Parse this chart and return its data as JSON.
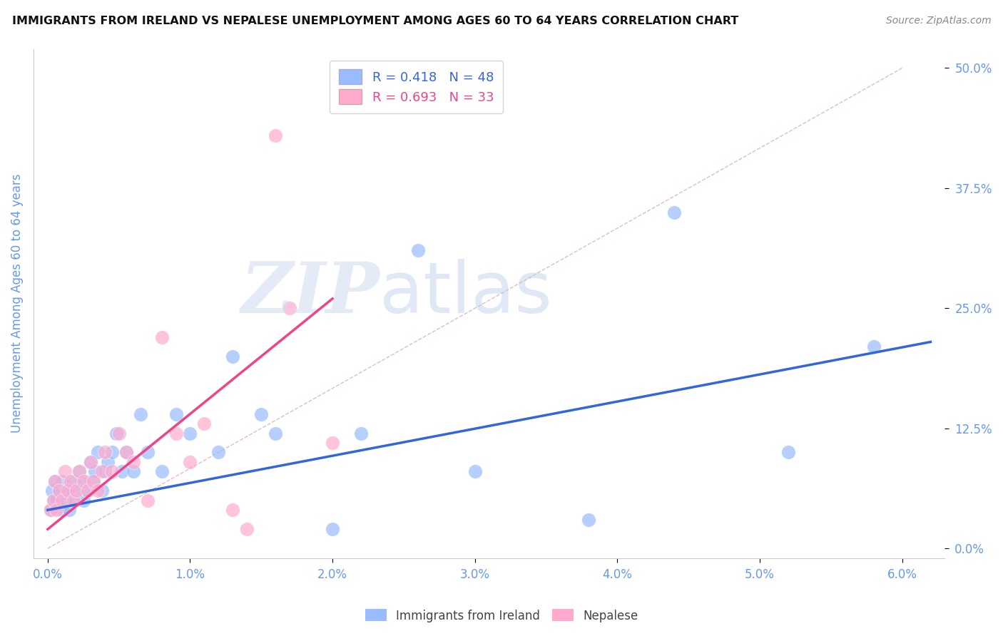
{
  "title": "IMMIGRANTS FROM IRELAND VS NEPALESE UNEMPLOYMENT AMONG AGES 60 TO 64 YEARS CORRELATION CHART",
  "source": "Source: ZipAtlas.com",
  "ylabel": "Unemployment Among Ages 60 to 64 years",
  "x_tick_labels": [
    "0.0%",
    "1.0%",
    "2.0%",
    "3.0%",
    "4.0%",
    "5.0%",
    "6.0%"
  ],
  "x_tick_vals": [
    0.0,
    0.01,
    0.02,
    0.03,
    0.04,
    0.05,
    0.06
  ],
  "y_tick_labels": [
    "0.0%",
    "12.5%",
    "25.0%",
    "37.5%",
    "50.0%"
  ],
  "y_tick_vals": [
    0.0,
    0.125,
    0.25,
    0.375,
    0.5
  ],
  "xlim": [
    -0.001,
    0.063
  ],
  "ylim": [
    -0.01,
    0.52
  ],
  "blue_color": "#99bbff",
  "pink_color": "#ffaacc",
  "blue_label": "Immigrants from Ireland",
  "pink_label": "Nepalese",
  "legend_r_blue": "R = 0.418",
  "legend_n_blue": "N = 48",
  "legend_r_pink": "R = 0.693",
  "legend_n_pink": "N = 33",
  "blue_scatter_x": [
    0.0002,
    0.0003,
    0.0004,
    0.0005,
    0.0006,
    0.0008,
    0.001,
    0.001,
    0.0012,
    0.0013,
    0.0015,
    0.0015,
    0.0017,
    0.0018,
    0.002,
    0.0022,
    0.0025,
    0.0026,
    0.0028,
    0.003,
    0.0032,
    0.0033,
    0.0035,
    0.0038,
    0.004,
    0.0042,
    0.0045,
    0.0048,
    0.0052,
    0.0055,
    0.006,
    0.0065,
    0.007,
    0.008,
    0.009,
    0.01,
    0.012,
    0.013,
    0.015,
    0.016,
    0.02,
    0.022,
    0.026,
    0.03,
    0.038,
    0.044,
    0.052,
    0.058
  ],
  "blue_scatter_y": [
    0.04,
    0.06,
    0.05,
    0.07,
    0.05,
    0.06,
    0.04,
    0.07,
    0.05,
    0.06,
    0.04,
    0.06,
    0.05,
    0.07,
    0.06,
    0.08,
    0.05,
    0.07,
    0.06,
    0.09,
    0.07,
    0.08,
    0.1,
    0.06,
    0.08,
    0.09,
    0.1,
    0.12,
    0.08,
    0.1,
    0.08,
    0.14,
    0.1,
    0.08,
    0.14,
    0.12,
    0.1,
    0.2,
    0.14,
    0.12,
    0.02,
    0.12,
    0.31,
    0.08,
    0.03,
    0.35,
    0.1,
    0.21
  ],
  "pink_scatter_x": [
    0.0002,
    0.0004,
    0.0005,
    0.0006,
    0.0008,
    0.001,
    0.0012,
    0.0014,
    0.0016,
    0.0018,
    0.002,
    0.0022,
    0.0025,
    0.0028,
    0.003,
    0.0032,
    0.0035,
    0.0038,
    0.004,
    0.0045,
    0.005,
    0.0055,
    0.006,
    0.007,
    0.008,
    0.009,
    0.01,
    0.011,
    0.013,
    0.014,
    0.016,
    0.017,
    0.02
  ],
  "pink_scatter_y": [
    0.04,
    0.05,
    0.07,
    0.04,
    0.06,
    0.05,
    0.08,
    0.06,
    0.07,
    0.05,
    0.06,
    0.08,
    0.07,
    0.06,
    0.09,
    0.07,
    0.06,
    0.08,
    0.1,
    0.08,
    0.12,
    0.1,
    0.09,
    0.05,
    0.22,
    0.12,
    0.09,
    0.13,
    0.04,
    0.02,
    0.43,
    0.25,
    0.11
  ],
  "blue_trend_x": [
    0.0,
    0.062
  ],
  "blue_trend_y": [
    0.04,
    0.215
  ],
  "pink_trend_x": [
    0.0,
    0.02
  ],
  "pink_trend_y": [
    0.02,
    0.26
  ],
  "ref_line_x": [
    0.0,
    0.06
  ],
  "ref_line_y": [
    0.0,
    0.5
  ],
  "watermark_zip": "ZIP",
  "watermark_atlas": "atlas",
  "background_color": "#ffffff",
  "grid_color": "#dddddd",
  "title_color": "#111111",
  "ylabel_color": "#6699ee",
  "tick_color": "#6699ee",
  "trend_blue_color": "#3366dd",
  "trend_pink_color": "#ee4488",
  "ref_line_color": "#ddaaaa"
}
